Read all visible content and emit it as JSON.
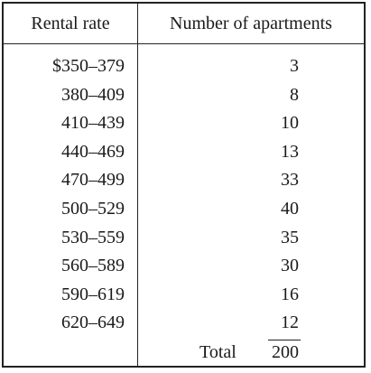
{
  "table": {
    "headers": {
      "rate": "Rental rate",
      "count": "Number of apartments"
    },
    "rows": [
      {
        "rate": "$350–379",
        "count": "3"
      },
      {
        "rate": "380–409",
        "count": "8"
      },
      {
        "rate": "410–439",
        "count": "10"
      },
      {
        "rate": "440–469",
        "count": "13"
      },
      {
        "rate": "470–499",
        "count": "33"
      },
      {
        "rate": "500–529",
        "count": "40"
      },
      {
        "rate": "530–559",
        "count": "35"
      },
      {
        "rate": "560–589",
        "count": "30"
      },
      {
        "rate": "590–619",
        "count": "16"
      },
      {
        "rate": "620–649",
        "count": "12"
      }
    ],
    "total_label": "Total",
    "total_value": "200"
  }
}
